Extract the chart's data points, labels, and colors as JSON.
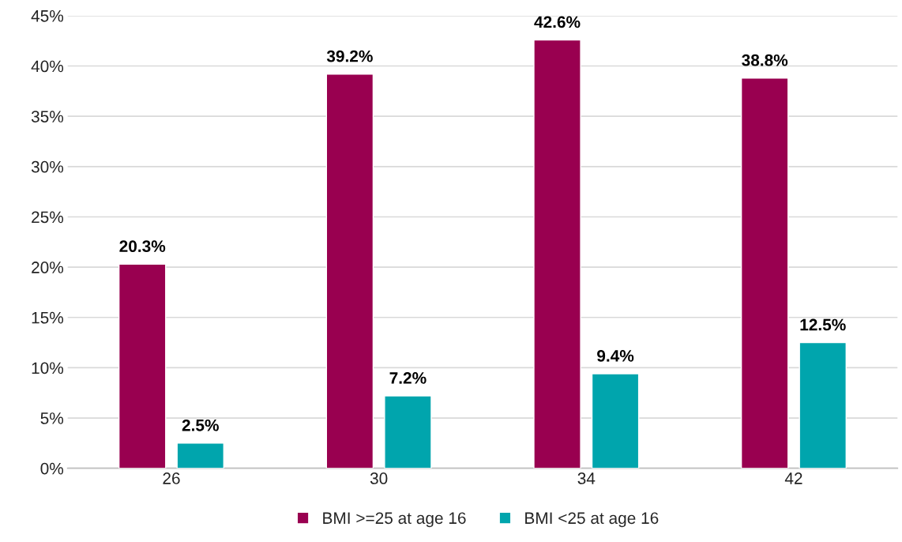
{
  "chart_data": {
    "type": "bar",
    "categories": [
      "26",
      "30",
      "34",
      "42"
    ],
    "series": [
      {
        "name": "BMI >=25 at age 16",
        "color": "#990050",
        "values": [
          20.3,
          39.2,
          42.6,
          38.8
        ],
        "value_labels": [
          "20.3%",
          "39.2%",
          "42.6%",
          "38.8%"
        ]
      },
      {
        "name": "BMI <25 at age 16",
        "color": "#00a5ad",
        "values": [
          2.5,
          7.2,
          9.4,
          12.5
        ],
        "value_labels": [
          "2.5%",
          "7.2%",
          "9.4%",
          "12.5%"
        ]
      }
    ],
    "ylim": [
      0,
      45
    ],
    "yticks": [
      {
        "value": 0,
        "label": "0%"
      },
      {
        "value": 5,
        "label": "5%"
      },
      {
        "value": 10,
        "label": "10%"
      },
      {
        "value": 15,
        "label": "15%"
      },
      {
        "value": 20,
        "label": "20%"
      },
      {
        "value": 25,
        "label": "25%"
      },
      {
        "value": 30,
        "label": "30%"
      },
      {
        "value": 35,
        "label": "35%"
      },
      {
        "value": 40,
        "label": "40%"
      },
      {
        "value": 45,
        "label": "45%"
      }
    ],
    "grid": "y",
    "legend": "bottom"
  }
}
